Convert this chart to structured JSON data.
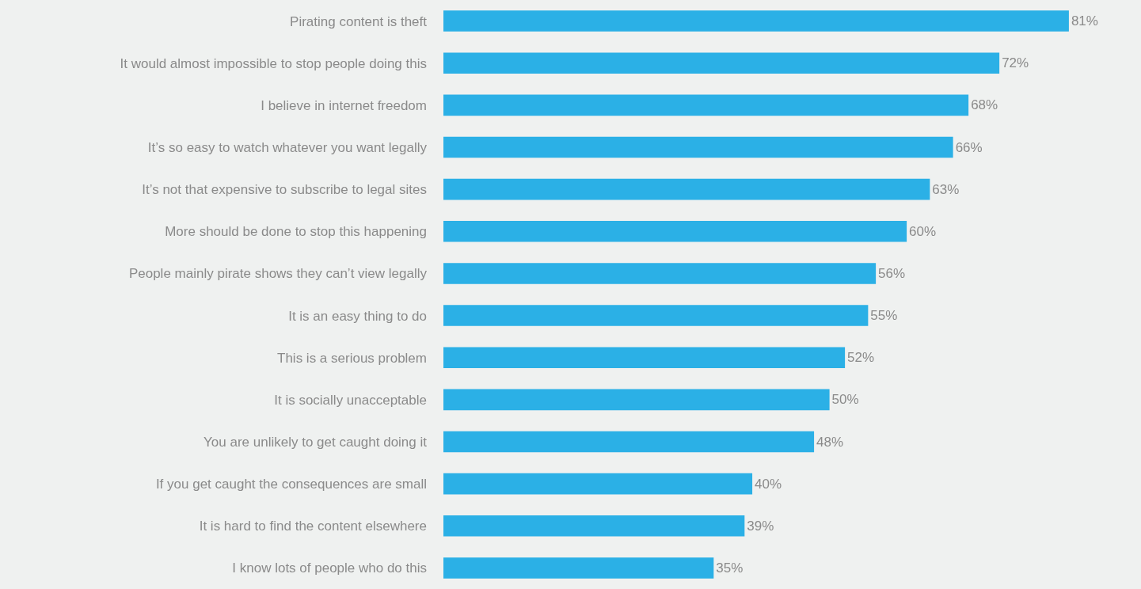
{
  "chart_data": {
    "type": "bar",
    "orientation": "horizontal",
    "categories": [
      "Pirating content is theft",
      "It would almost impossible to stop people doing this",
      "I believe in internet freedom",
      "It’s so easy to watch whatever you want legally",
      "It’s not that expensive to subscribe to legal sites",
      "More should be done to stop this happening",
      "People mainly pirate shows they can’t view legally",
      "It is an easy thing to do",
      "This is a serious problem",
      "It is socially unacceptable",
      "You are unlikely to get caught doing it",
      "If you get caught the consequences are small",
      "It is hard to find the content elsewhere",
      "I know lots of people who do this"
    ],
    "values": [
      81,
      72,
      68,
      66,
      63,
      60,
      56,
      55,
      52,
      50,
      48,
      40,
      39,
      35
    ],
    "value_labels": [
      "81%",
      "72%",
      "68%",
      "66%",
      "63%",
      "60%",
      "56%",
      "55%",
      "52%",
      "50%",
      "48%",
      "40%",
      "39%",
      "35%"
    ],
    "color": "#2bb0e6"
  }
}
